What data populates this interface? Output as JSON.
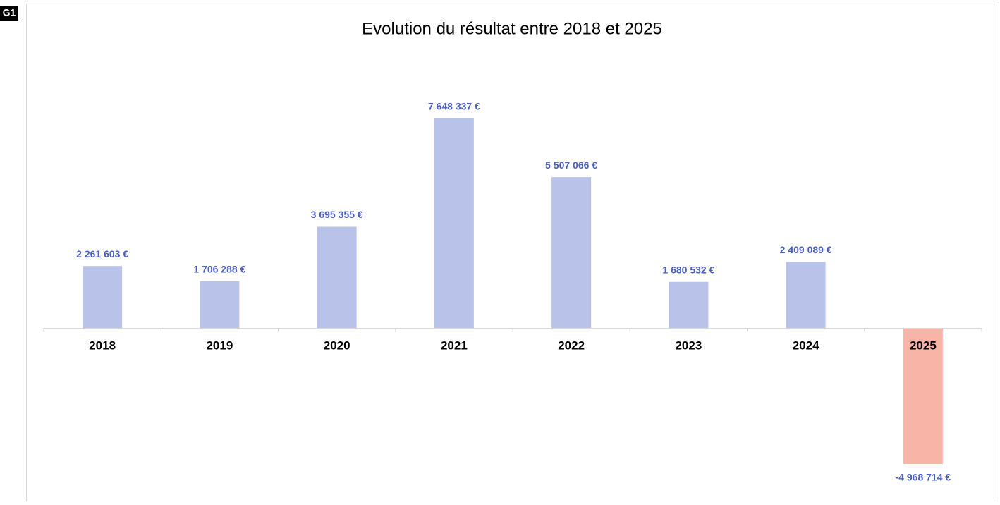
{
  "badge": "G1",
  "chart_data": {
    "type": "bar",
    "title": "Evolution du résultat entre 2018 et 2025",
    "categories": [
      "2018",
      "2019",
      "2020",
      "2021",
      "2022",
      "2023",
      "2024",
      "2025"
    ],
    "values": [
      2261603,
      1706288,
      3695355,
      7648337,
      5507066,
      1680532,
      2409089,
      -4968714
    ],
    "value_labels": [
      "2 261 603 €",
      "1 706 288 €",
      "3 695 355 €",
      "7 648 337 €",
      "5 507 066 €",
      "1 680 532 €",
      "2 409 089 €",
      "-4 968 714 €"
    ],
    "colors": [
      "#b9c3ea",
      "#b9c3ea",
      "#b9c3ea",
      "#b9c3ea",
      "#b9c3ea",
      "#b9c3ea",
      "#b9c3ea",
      "#f8b4a6"
    ],
    "label_color": "#4a5fc1"
  }
}
